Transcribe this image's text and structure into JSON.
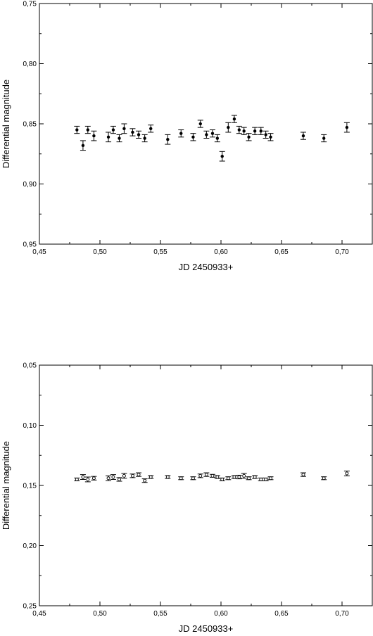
{
  "chart_data": [
    {
      "type": "scatter",
      "xlabel": "JD 2450933+",
      "ylabel": "Differential magnitude",
      "xlim": [
        0.45,
        0.725
      ],
      "ylim": [
        0.95,
        0.75
      ],
      "y_inverted": true,
      "marker": "filled-circle",
      "error_bars": true,
      "xticks": [
        "0,45",
        "0,50",
        "0,55",
        "0,60",
        "0,65",
        "0,70"
      ],
      "xtick_values": [
        0.45,
        0.5,
        0.55,
        0.6,
        0.65,
        0.7
      ],
      "yticks": [
        "0,75",
        "0,80",
        "0,85",
        "0,90",
        "0,95"
      ],
      "ytick_values": [
        0.75,
        0.8,
        0.85,
        0.9,
        0.95
      ],
      "points": [
        {
          "x": 0.481,
          "y": 0.855,
          "err": 0.003
        },
        {
          "x": 0.486,
          "y": 0.868,
          "err": 0.004
        },
        {
          "x": 0.49,
          "y": 0.855,
          "err": 0.003
        },
        {
          "x": 0.495,
          "y": 0.86,
          "err": 0.004
        },
        {
          "x": 0.507,
          "y": 0.861,
          "err": 0.004
        },
        {
          "x": 0.511,
          "y": 0.855,
          "err": 0.003
        },
        {
          "x": 0.516,
          "y": 0.862,
          "err": 0.003
        },
        {
          "x": 0.52,
          "y": 0.854,
          "err": 0.004
        },
        {
          "x": 0.527,
          "y": 0.857,
          "err": 0.003
        },
        {
          "x": 0.532,
          "y": 0.859,
          "err": 0.003
        },
        {
          "x": 0.537,
          "y": 0.862,
          "err": 0.003
        },
        {
          "x": 0.542,
          "y": 0.854,
          "err": 0.003
        },
        {
          "x": 0.556,
          "y": 0.863,
          "err": 0.004
        },
        {
          "x": 0.567,
          "y": 0.858,
          "err": 0.003
        },
        {
          "x": 0.577,
          "y": 0.861,
          "err": 0.003
        },
        {
          "x": 0.583,
          "y": 0.85,
          "err": 0.003
        },
        {
          "x": 0.588,
          "y": 0.859,
          "err": 0.003
        },
        {
          "x": 0.593,
          "y": 0.858,
          "err": 0.003
        },
        {
          "x": 0.597,
          "y": 0.862,
          "err": 0.003
        },
        {
          "x": 0.601,
          "y": 0.877,
          "err": 0.004
        },
        {
          "x": 0.606,
          "y": 0.853,
          "err": 0.004
        },
        {
          "x": 0.611,
          "y": 0.846,
          "err": 0.003
        },
        {
          "x": 0.615,
          "y": 0.855,
          "err": 0.003
        },
        {
          "x": 0.619,
          "y": 0.856,
          "err": 0.003
        },
        {
          "x": 0.623,
          "y": 0.861,
          "err": 0.003
        },
        {
          "x": 0.628,
          "y": 0.856,
          "err": 0.003
        },
        {
          "x": 0.633,
          "y": 0.856,
          "err": 0.003
        },
        {
          "x": 0.637,
          "y": 0.859,
          "err": 0.003
        },
        {
          "x": 0.641,
          "y": 0.861,
          "err": 0.003
        },
        {
          "x": 0.668,
          "y": 0.86,
          "err": 0.003
        },
        {
          "x": 0.685,
          "y": 0.862,
          "err": 0.003
        },
        {
          "x": 0.704,
          "y": 0.853,
          "err": 0.004
        }
      ]
    },
    {
      "type": "scatter",
      "xlabel": "JD 2450933+",
      "ylabel": "Differential magnitude",
      "xlim": [
        0.45,
        0.725
      ],
      "ylim": [
        0.25,
        0.05
      ],
      "y_inverted": true,
      "marker": "open-circle",
      "error_bars": true,
      "xticks": [
        "0,45",
        "0,50",
        "0,55",
        "0,60",
        "0,65",
        "0,70"
      ],
      "xtick_values": [
        0.45,
        0.5,
        0.55,
        0.6,
        0.65,
        0.7
      ],
      "yticks": [
        "0,05",
        "0,10",
        "0,15",
        "0,20",
        "0,25"
      ],
      "ytick_values": [
        0.05,
        0.1,
        0.15,
        0.2,
        0.25
      ],
      "points": [
        {
          "x": 0.481,
          "y": 0.145,
          "err": 0.0012
        },
        {
          "x": 0.486,
          "y": 0.143,
          "err": 0.002
        },
        {
          "x": 0.49,
          "y": 0.145,
          "err": 0.002
        },
        {
          "x": 0.495,
          "y": 0.144,
          "err": 0.0015
        },
        {
          "x": 0.507,
          "y": 0.144,
          "err": 0.002
        },
        {
          "x": 0.511,
          "y": 0.143,
          "err": 0.002
        },
        {
          "x": 0.516,
          "y": 0.145,
          "err": 0.0015
        },
        {
          "x": 0.52,
          "y": 0.142,
          "err": 0.002
        },
        {
          "x": 0.527,
          "y": 0.142,
          "err": 0.0015
        },
        {
          "x": 0.532,
          "y": 0.141,
          "err": 0.0015
        },
        {
          "x": 0.537,
          "y": 0.146,
          "err": 0.0015
        },
        {
          "x": 0.542,
          "y": 0.143,
          "err": 0.0012
        },
        {
          "x": 0.556,
          "y": 0.143,
          "err": 0.0012
        },
        {
          "x": 0.567,
          "y": 0.144,
          "err": 0.0012
        },
        {
          "x": 0.577,
          "y": 0.144,
          "err": 0.0012
        },
        {
          "x": 0.583,
          "y": 0.142,
          "err": 0.0015
        },
        {
          "x": 0.588,
          "y": 0.141,
          "err": 0.0015
        },
        {
          "x": 0.593,
          "y": 0.142,
          "err": 0.0012
        },
        {
          "x": 0.597,
          "y": 0.143,
          "err": 0.0012
        },
        {
          "x": 0.601,
          "y": 0.145,
          "err": 0.0012
        },
        {
          "x": 0.606,
          "y": 0.144,
          "err": 0.0012
        },
        {
          "x": 0.611,
          "y": 0.143,
          "err": 0.0012
        },
        {
          "x": 0.615,
          "y": 0.143,
          "err": 0.0015
        },
        {
          "x": 0.619,
          "y": 0.142,
          "err": 0.002
        },
        {
          "x": 0.623,
          "y": 0.144,
          "err": 0.0012
        },
        {
          "x": 0.628,
          "y": 0.143,
          "err": 0.0012
        },
        {
          "x": 0.633,
          "y": 0.145,
          "err": 0.0012
        },
        {
          "x": 0.637,
          "y": 0.145,
          "err": 0.0012
        },
        {
          "x": 0.641,
          "y": 0.144,
          "err": 0.0012
        },
        {
          "x": 0.668,
          "y": 0.141,
          "err": 0.0015
        },
        {
          "x": 0.685,
          "y": 0.144,
          "err": 0.0012
        },
        {
          "x": 0.704,
          "y": 0.14,
          "err": 0.002
        }
      ]
    }
  ]
}
